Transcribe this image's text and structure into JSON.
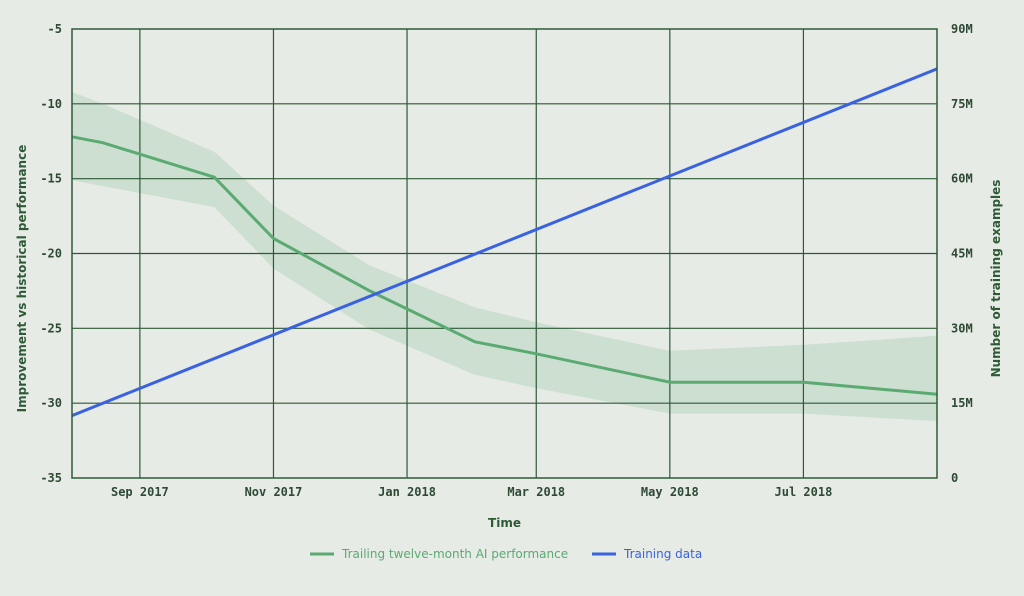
{
  "chart_data": {
    "type": "line",
    "title": "",
    "xlabel": "Time",
    "ylabel_left": "Improvement vs historical performance",
    "ylabel_right": "Number of training examples",
    "x_range": [
      "2017-08-01",
      "2018-08-31"
    ],
    "x_ticks": [
      {
        "date": "2017-09-01",
        "label": "Sep 2017"
      },
      {
        "date": "2017-11-01",
        "label": "Nov 2017"
      },
      {
        "date": "2018-01-01",
        "label": "Jan 2018"
      },
      {
        "date": "2018-03-01",
        "label": "Mar 2018"
      },
      {
        "date": "2018-05-01",
        "label": "May 2018"
      },
      {
        "date": "2018-07-01",
        "label": "Jul 2018"
      }
    ],
    "ylim_left": [
      -35,
      -5
    ],
    "y_ticks_left": [
      "-5",
      "-10",
      "-15",
      "-20",
      "-25",
      "-30",
      "-35"
    ],
    "ylim_right": [
      0,
      90000000
    ],
    "y_ticks_right": [
      "90M",
      "75M",
      "60M",
      "45M",
      "30M",
      "15M",
      "0"
    ],
    "grid": true,
    "legend_position": "bottom-center",
    "series": [
      {
        "name": "Trailing twelve-month AI performance",
        "axis": "left",
        "color": "#5aaa72",
        "x": [
          "2017-08-01",
          "2017-08-15",
          "2017-10-05",
          "2017-11-01",
          "2017-12-15",
          "2018-02-01",
          "2018-03-01",
          "2018-05-01",
          "2018-07-01",
          "2018-08-31"
        ],
        "values": [
          -12.2,
          -12.6,
          -14.9,
          -19.0,
          -22.5,
          -25.9,
          -26.7,
          -28.6,
          -28.6,
          -29.4
        ],
        "band_upper": [
          -9.2,
          -10.0,
          -13.2,
          -16.8,
          -20.8,
          -23.6,
          -24.6,
          -26.5,
          -26.1,
          -25.5
        ],
        "band_lower": [
          -15.1,
          -15.5,
          -16.9,
          -21.0,
          -25.1,
          -28.1,
          -29.0,
          -30.7,
          -30.7,
          -31.2
        ]
      },
      {
        "name": "Training data",
        "axis": "right",
        "color": "#3a62e0",
        "x": [
          "2017-08-01",
          "2018-08-31"
        ],
        "values": [
          12500000,
          82000000
        ]
      }
    ]
  }
}
